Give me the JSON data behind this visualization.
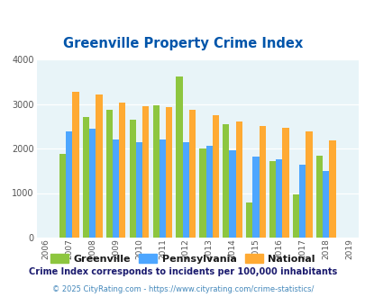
{
  "title": "Greenville Property Crime Index",
  "years": [
    2006,
    2007,
    2008,
    2009,
    2010,
    2011,
    2012,
    2013,
    2014,
    2015,
    2016,
    2017,
    2018,
    2019
  ],
  "greenville": [
    null,
    1870,
    2700,
    2870,
    2640,
    2970,
    3610,
    2000,
    2550,
    780,
    1720,
    970,
    1840,
    null
  ],
  "pennsylvania": [
    null,
    2380,
    2440,
    2200,
    2150,
    2200,
    2150,
    2060,
    1950,
    1810,
    1750,
    1640,
    1500,
    null
  ],
  "national": [
    null,
    3280,
    3210,
    3040,
    2950,
    2930,
    2870,
    2750,
    2600,
    2510,
    2460,
    2390,
    2180,
    null
  ],
  "bar_width": 0.28,
  "color_greenville": "#8dc63f",
  "color_pennsylvania": "#4da6ff",
  "color_national": "#ffaa33",
  "bg_color": "#e8f4f8",
  "ylim": [
    0,
    4000
  ],
  "yticks": [
    0,
    1000,
    2000,
    3000,
    4000
  ],
  "legend_labels": [
    "Greenville",
    "Pennsylvania",
    "National"
  ],
  "footnote1": "Crime Index corresponds to incidents per 100,000 inhabitants",
  "footnote2": "© 2025 CityRating.com - https://www.cityrating.com/crime-statistics/",
  "title_color": "#0055aa",
  "footnote1_color": "#1a1a6e",
  "footnote2_color": "#4488bb"
}
